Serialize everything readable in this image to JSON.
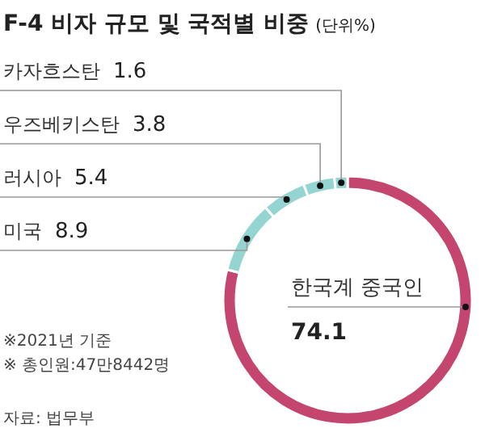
{
  "chart_data": {
    "type": "donut",
    "title": "F-4 비자 규모 및 국적별 비중",
    "subtitle": "(단위%)",
    "categories": [
      "한국계 중국인",
      "미국",
      "러시아",
      "우즈베키스탄",
      "카자흐스탄"
    ],
    "values": [
      74.1,
      8.9,
      5.4,
      3.8,
      1.6
    ],
    "colors": [
      "#c4466f",
      "#94d4d1",
      "#94d4d1",
      "#94d4d1",
      "#94d4d1"
    ],
    "data_labels": true,
    "annotations": [
      "※2021년 기준",
      "※ 총인원:47만8442명",
      "자료: 법무부"
    ]
  }
}
